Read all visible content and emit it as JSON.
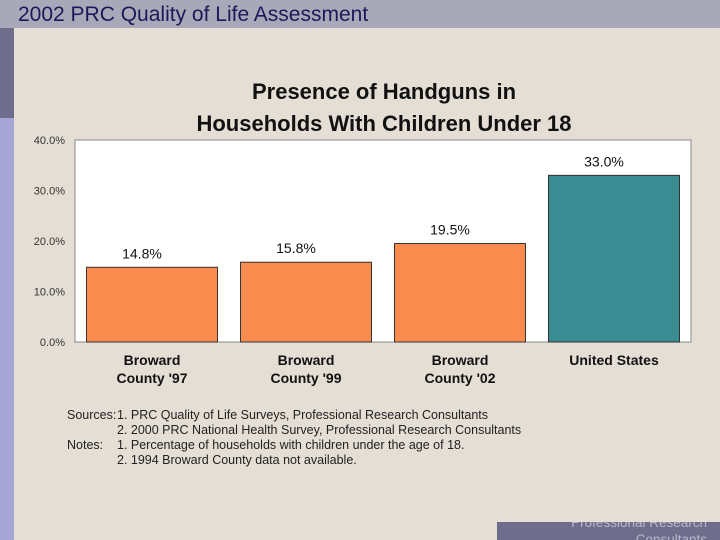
{
  "header": {
    "title": "2002 PRC Quality of Life Assessment"
  },
  "footer": {
    "text": "Professional Research Consultants"
  },
  "colors": {
    "broward": "#fb8c4f",
    "us": "#3a8c92",
    "bar_stroke": "#333333",
    "plot_bg": "#ffffff"
  },
  "chart_data": {
    "type": "bar",
    "title_lines": [
      "Presence of Handguns in",
      "Households With Children Under 18"
    ],
    "categories": [
      [
        "Broward",
        "County '97"
      ],
      [
        "Broward",
        "County '99"
      ],
      [
        "Broward",
        "County '02"
      ],
      [
        "United States"
      ]
    ],
    "values": [
      14.8,
      15.8,
      19.5,
      33.0
    ],
    "value_labels": [
      "14.8%",
      "15.8%",
      "19.5%",
      "33.0%"
    ],
    "bar_colors": [
      "broward",
      "broward",
      "broward",
      "us"
    ],
    "yticks": [
      "0.0%",
      "10.0%",
      "20.0%",
      "30.0%",
      "40.0%"
    ],
    "ylim": [
      0,
      40
    ],
    "grid": false,
    "legend": "none"
  },
  "notes": [
    {
      "label": "Sources:",
      "text": "1. PRC Quality of Life Surveys, Professional Research Consultants"
    },
    {
      "label": "",
      "text": "2. 2000 PRC National Health Survey, Professional Research Consultants"
    },
    {
      "label": "Notes:",
      "text": "1. Percentage of households with children under the age of 18."
    },
    {
      "label": "",
      "text": "2. 1994 Broward County data not available."
    }
  ]
}
